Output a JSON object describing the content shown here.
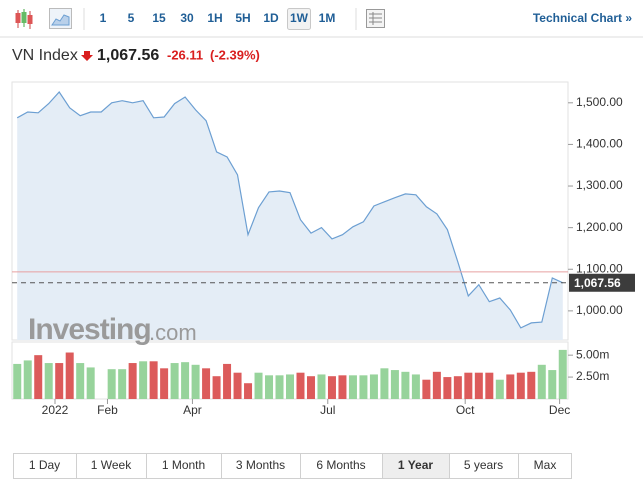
{
  "toolbar": {
    "intervals": [
      "1",
      "5",
      "15",
      "30",
      "1H",
      "5H",
      "1D",
      "1W",
      "1M"
    ],
    "selected": "1W",
    "link": "Technical Chart »"
  },
  "header": {
    "name": "VN Index",
    "price": "1,067.56",
    "change": "-26.11",
    "change_pct": "(-2.39%)"
  },
  "watermark": {
    "brand": "Investing",
    "suffix": ".com"
  },
  "chart_data": [
    {
      "type": "area",
      "color": "#6c9fd2",
      "fill": "#e4edf6",
      "x": [
        0,
        1,
        2,
        3,
        4,
        5,
        6,
        7,
        8,
        9,
        10,
        11,
        12,
        13,
        14,
        15,
        16,
        17,
        18,
        19,
        20,
        21,
        22,
        23,
        24,
        25,
        26,
        27,
        28,
        29,
        30,
        31,
        32,
        33,
        34,
        35,
        36,
        37,
        38,
        39,
        40,
        41,
        42,
        43,
        44,
        45,
        46,
        47,
        48,
        49,
        50,
        51,
        52
      ],
      "values": [
        1464,
        1478,
        1476,
        1498,
        1526,
        1488,
        1469,
        1478,
        1478,
        1500,
        1505,
        1500,
        1505,
        1464,
        1466,
        1498,
        1514,
        1483,
        1457,
        1382,
        1370,
        1327,
        1183,
        1248,
        1286,
        1288,
        1284,
        1219,
        1187,
        1200,
        1173,
        1183,
        1202,
        1214,
        1252,
        1262,
        1272,
        1281,
        1279,
        1250,
        1233,
        1195,
        1118,
        1036,
        1063,
        1022,
        1031,
        1002,
        959,
        971,
        973,
        1079,
        1067.56
      ],
      "last_label": "1,067.56",
      "reference_line": 1093.67,
      "reference_color": "#e8a0a0",
      "xlim": [
        -0.5,
        52.5
      ],
      "ylim": [
        930,
        1550
      ],
      "yticks": [
        {
          "value": 1000,
          "label": "1,000.00"
        },
        {
          "value": 1100,
          "label": "1,100.00"
        },
        {
          "value": 1200,
          "label": "1,200.00"
        },
        {
          "value": 1300,
          "label": "1,300.00"
        },
        {
          "value": 1400,
          "label": "1,400.00"
        },
        {
          "value": 1500,
          "label": "1,500.00"
        }
      ],
      "grid": false
    },
    {
      "type": "bar",
      "x": [
        0,
        1,
        2,
        3,
        4,
        5,
        6,
        7,
        8,
        9,
        10,
        11,
        12,
        13,
        14,
        15,
        16,
        17,
        18,
        19,
        20,
        21,
        22,
        23,
        24,
        25,
        26,
        27,
        28,
        29,
        30,
        31,
        32,
        33,
        34,
        35,
        36,
        37,
        38,
        39,
        40,
        41,
        42,
        43,
        44,
        45,
        46,
        47,
        48,
        49,
        50,
        51,
        52
      ],
      "values": [
        4.0,
        4.4,
        5.0,
        4.1,
        4.1,
        5.3,
        4.1,
        3.6,
        null,
        3.4,
        3.4,
        4.1,
        4.3,
        4.3,
        3.5,
        4.1,
        4.2,
        3.9,
        3.5,
        2.6,
        4.0,
        3.0,
        1.8,
        3.0,
        2.7,
        2.7,
        2.8,
        3.0,
        2.6,
        2.8,
        2.6,
        2.7,
        2.7,
        2.7,
        2.8,
        3.5,
        3.3,
        3.1,
        2.8,
        2.2,
        3.1,
        2.5,
        2.6,
        3.0,
        3.0,
        3.0,
        2.2,
        2.8,
        3.0,
        3.1,
        3.9,
        3.3,
        5.6
      ],
      "colors": [
        "#97d39b",
        "#97d39b",
        "#dc5b5b",
        "#97d39b",
        "#dc5b5b",
        "#dc5b5b",
        "#97d39b",
        "#97d39b",
        null,
        "#97d39b",
        "#97d39b",
        "#dc5b5b",
        "#97d39b",
        "#dc5b5b",
        "#dc5b5b",
        "#97d39b",
        "#97d39b",
        "#97d39b",
        "#dc5b5b",
        "#dc5b5b",
        "#dc5b5b",
        "#dc5b5b",
        "#dc5b5b",
        "#97d39b",
        "#97d39b",
        "#97d39b",
        "#97d39b",
        "#dc5b5b",
        "#dc5b5b",
        "#97d39b",
        "#dc5b5b",
        "#dc5b5b",
        "#97d39b",
        "#97d39b",
        "#97d39b",
        "#97d39b",
        "#97d39b",
        "#97d39b",
        "#97d39b",
        "#dc5b5b",
        "#dc5b5b",
        "#dc5b5b",
        "#dc5b5b",
        "#dc5b5b",
        "#dc5b5b",
        "#dc5b5b",
        "#97d39b",
        "#dc5b5b",
        "#dc5b5b",
        "#dc5b5b",
        "#97d39b",
        "#97d39b",
        "#97d39b"
      ],
      "xlim": [
        -0.5,
        52.5
      ],
      "ylim": [
        0,
        6.5
      ],
      "yticks": [
        {
          "value": 2.5,
          "label": "2.50m"
        },
        {
          "value": 5,
          "label": "5.00m"
        }
      ],
      "xticks": [
        {
          "value": 3.6,
          "label": "2022"
        },
        {
          "value": 8.6,
          "label": "Feb"
        },
        {
          "value": 16.7,
          "label": "Apr"
        },
        {
          "value": 29.6,
          "label": "Jul"
        },
        {
          "value": 42.7,
          "label": "Oct"
        },
        {
          "value": 51.7,
          "label": "Dec"
        }
      ]
    }
  ],
  "range_buttons": {
    "labels": [
      "1 Day",
      "1 Week",
      "1 Month",
      "3 Months",
      "6 Months",
      "1 Year",
      "5 years",
      "Max"
    ],
    "selected": "1 Year"
  }
}
